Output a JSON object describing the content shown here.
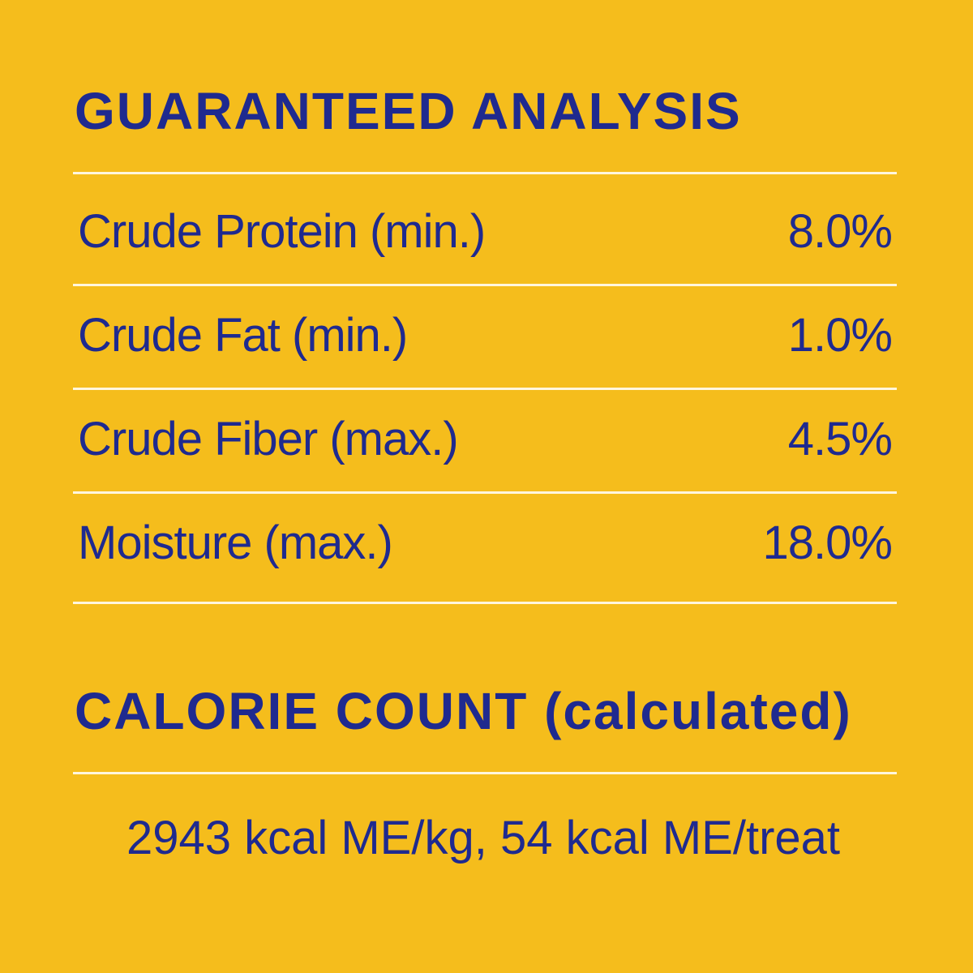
{
  "header": {
    "title": "GUARANTEED ANALYSIS"
  },
  "table": {
    "rows": [
      [
        "Crude Protein (min.)",
        "8.0%"
      ],
      [
        "Crude Fat (min.)",
        "1.0%"
      ],
      [
        "Crude Fiber (max.)",
        "4.5%"
      ],
      [
        "Moisture (max.)",
        "18.0%"
      ]
    ]
  },
  "calories": {
    "title": "CALORIE COUNT",
    "title_note": "(calculated)",
    "text": "2943 kcal ME/kg, 54 kcal ME/treat"
  }
}
